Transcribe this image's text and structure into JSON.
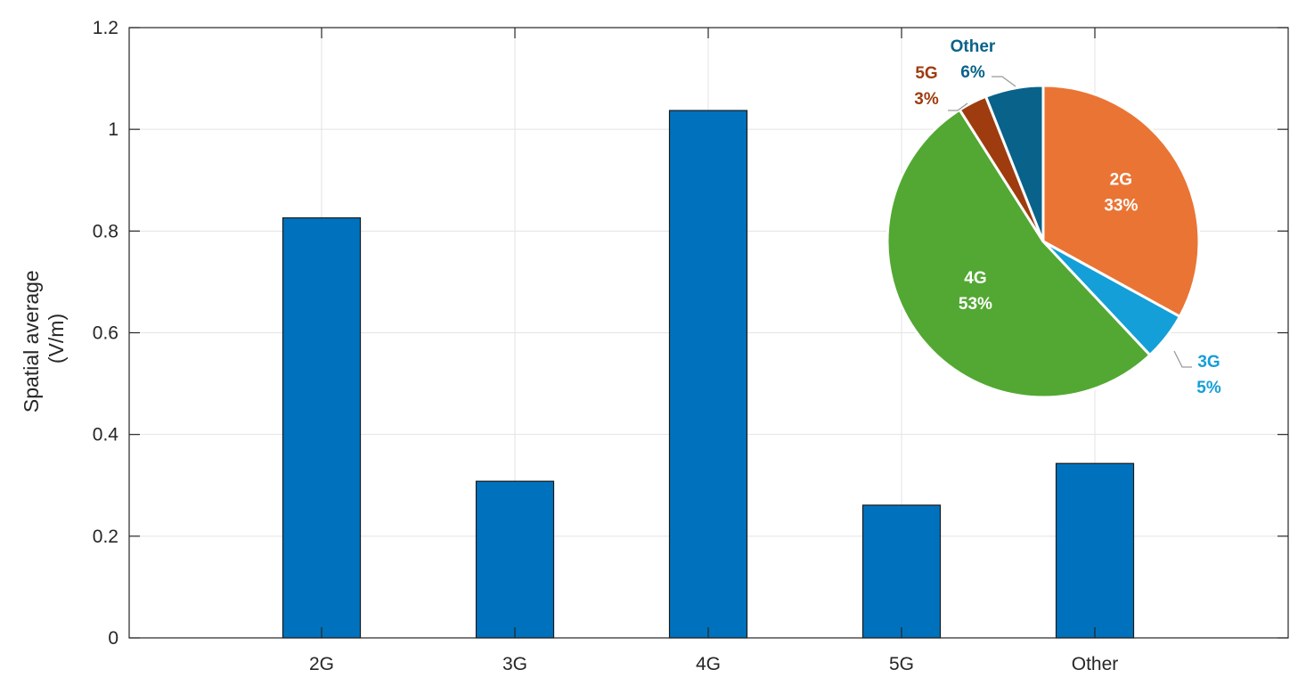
{
  "chart_data": [
    {
      "type": "bar",
      "categories": [
        "2G",
        "3G",
        "4G",
        "5G",
        "Other"
      ],
      "values": [
        0.826,
        0.308,
        1.037,
        0.261,
        0.343
      ],
      "ylabel_line1": "Spatial average",
      "ylabel_line2": "(V/m)",
      "ylim": [
        0,
        1.2
      ],
      "yticks": [
        "0",
        "0.2",
        "0.4",
        "0.6",
        "0.8",
        "1",
        "1.2"
      ],
      "grid": true,
      "bar_color": "#0072BD"
    },
    {
      "type": "pie",
      "slices": [
        {
          "name": "2G",
          "pct": "33%",
          "value": 33,
          "color": "#EA7434"
        },
        {
          "name": "3G",
          "pct": "5%",
          "value": 5,
          "color": "#149FD8"
        },
        {
          "name": "4G",
          "pct": "53%",
          "value": 53,
          "color": "#52A832"
        },
        {
          "name": "5G",
          "pct": "3%",
          "value": 3,
          "color": "#9E3C0F"
        },
        {
          "name": "Other",
          "pct": "6%",
          "value": 6,
          "color": "#09628A"
        }
      ]
    }
  ]
}
